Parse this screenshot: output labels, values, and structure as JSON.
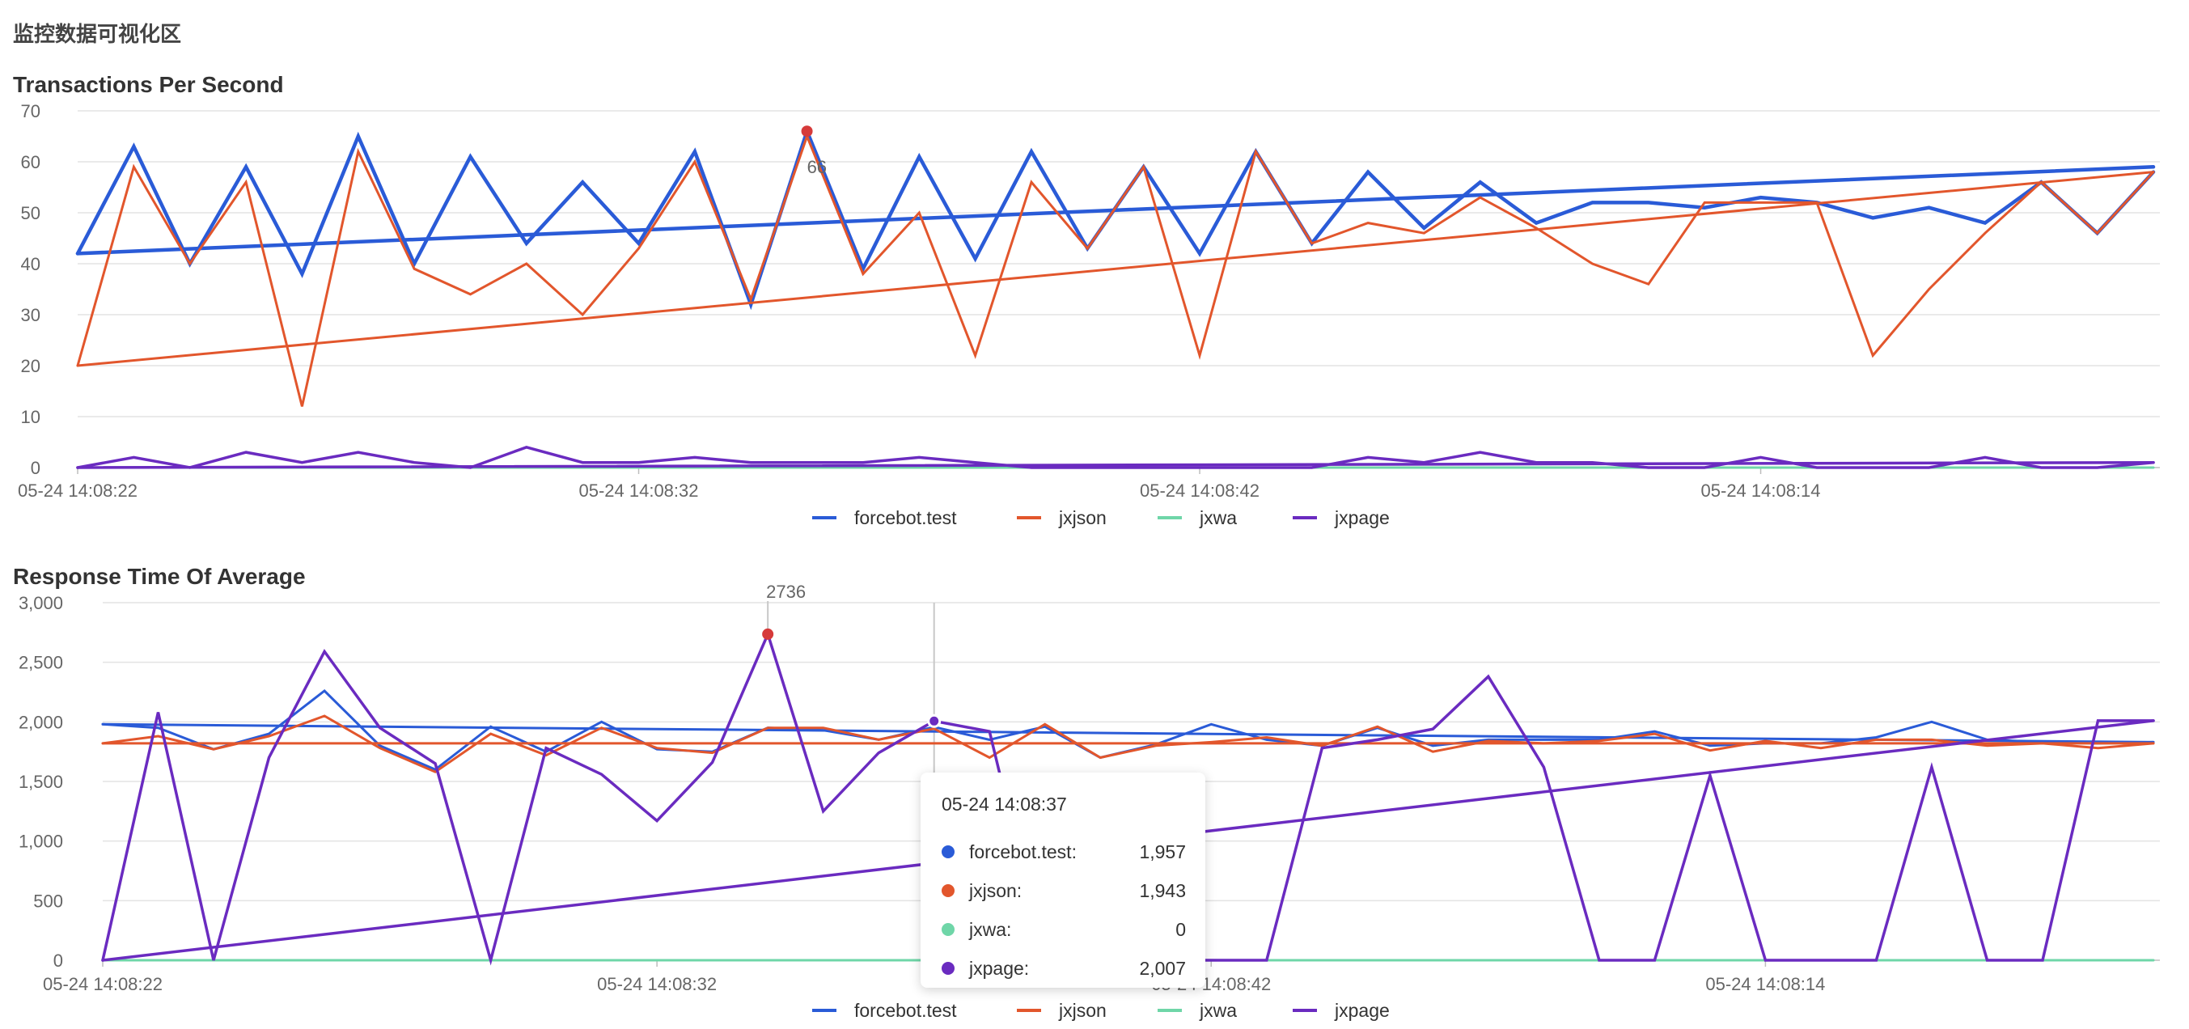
{
  "page": {
    "title": "监控数据可视化区"
  },
  "colors": {
    "forcebot_test": "#2a5bd7",
    "jxjson": "#e2562c",
    "jxwa": "#6fd6a8",
    "jxpage": "#6a2bc0",
    "highlight": "#d63a3a",
    "grid": "#e3e3e3"
  },
  "legend": [
    "forcebot.test",
    "jxjson",
    "jxwa",
    "jxpage"
  ],
  "tooltip": {
    "title": "05-24 14:08:37",
    "rows": [
      {
        "name": "forcebot.test:",
        "value": "1,957",
        "color": "#2a5bd7"
      },
      {
        "name": "jxjson:",
        "value": "1,943",
        "color": "#e2562c"
      },
      {
        "name": "jxwa:",
        "value": "0",
        "color": "#6fd6a8"
      },
      {
        "name": "jxpage:",
        "value": "2,007",
        "color": "#6a2bc0"
      }
    ]
  },
  "chart_data": [
    {
      "type": "line",
      "title": "Transactions Per Second",
      "xlabel": "",
      "ylabel": "",
      "ylim": [
        0,
        70
      ],
      "yticks": [
        "0",
        "10",
        "20",
        "30",
        "40",
        "50",
        "60",
        "70"
      ],
      "xtick_labels": [
        "05-24 14:08:22",
        "05-24 14:08:32",
        "05-24 14:08:42",
        "05-24 14:08:14"
      ],
      "xtick_indices": [
        0,
        10,
        20,
        30
      ],
      "n_points": 38,
      "grid": true,
      "legend_position": "bottom",
      "max_marker": {
        "series": "forcebot.test",
        "index": 13,
        "value": 66,
        "label": "66"
      },
      "series": [
        {
          "name": "forcebot.test",
          "color": "#2a5bd7",
          "width": 4.5,
          "values": [
            42,
            63,
            40,
            59,
            38,
            65,
            40,
            61,
            44,
            56,
            44,
            62,
            32,
            66,
            39,
            61,
            41,
            62,
            43,
            59,
            42,
            62,
            44,
            58,
            47,
            56,
            48,
            52,
            52,
            51,
            53,
            52,
            49,
            51,
            48,
            56,
            46,
            58
          ],
          "trend": [
            42,
            59
          ]
        },
        {
          "name": "jxjson",
          "color": "#e2562c",
          "width": 3,
          "values": [
            20,
            59,
            40,
            56,
            12,
            62,
            39,
            34,
            40,
            30,
            43,
            60,
            33,
            65,
            38,
            50,
            22,
            56,
            43,
            59,
            22,
            62,
            44,
            48,
            46,
            53,
            47,
            40,
            36,
            52,
            52,
            52,
            22,
            35,
            46,
            56,
            46,
            58
          ],
          "trend": [
            20,
            58
          ]
        },
        {
          "name": "jxwa",
          "color": "#6fd6a8",
          "width": 3,
          "values": [
            0,
            0,
            0,
            0,
            0,
            0,
            0,
            0,
            0,
            0,
            0,
            0,
            0,
            0,
            0,
            0,
            0,
            0,
            0,
            0,
            0,
            0,
            0,
            0,
            0,
            0,
            0,
            0,
            0,
            0,
            0,
            0,
            0,
            0,
            0,
            0,
            0,
            0
          ],
          "trend": null
        },
        {
          "name": "jxpage",
          "color": "#6a2bc0",
          "width": 3.5,
          "values": [
            0,
            2,
            0,
            3,
            1,
            3,
            1,
            0,
            4,
            1,
            1,
            2,
            1,
            1,
            1,
            2,
            1,
            0,
            0,
            0,
            0,
            0,
            0,
            2,
            1,
            3,
            1,
            1,
            0,
            0,
            2,
            0,
            0,
            0,
            2,
            0,
            0,
            1
          ],
          "trend": [
            0,
            1
          ]
        }
      ]
    },
    {
      "type": "line",
      "title": "Response Time Of Average",
      "xlabel": "",
      "ylabel": "",
      "ylim": [
        0,
        3000
      ],
      "yticks": [
        "0",
        "500",
        "1,000",
        "1,500",
        "2,000",
        "2,500",
        "3,000"
      ],
      "xtick_labels": [
        "05-24 14:08:22",
        "05-24 14:08:32",
        "05-24 14:08:42",
        "05-24 14:08:14"
      ],
      "xtick_indices": [
        0,
        10,
        20,
        30
      ],
      "n_points": 38,
      "grid": true,
      "legend_position": "bottom",
      "max_marker": {
        "series": "jxpage",
        "index": 12,
        "value": 2736,
        "label": "2736"
      },
      "crosshair_index": 15,
      "series": [
        {
          "name": "forcebot.test",
          "color": "#2a5bd7",
          "width": 3,
          "values": [
            1980,
            1950,
            1770,
            1900,
            2260,
            1800,
            1600,
            1960,
            1750,
            2000,
            1770,
            1750,
            1950,
            1930,
            1850,
            1957,
            1850,
            1960,
            1700,
            1810,
            1980,
            1850,
            1800,
            1950,
            1800,
            1850,
            1850,
            1850,
            1920,
            1800,
            1820,
            1820,
            1870,
            2000,
            1850,
            1830,
            1820,
            1830
          ],
          "trend": [
            1980,
            1830
          ]
        },
        {
          "name": "jxjson",
          "color": "#e2562c",
          "width": 3,
          "values": [
            1820,
            1880,
            1770,
            1880,
            2050,
            1780,
            1580,
            1900,
            1720,
            1950,
            1780,
            1740,
            1950,
            1950,
            1850,
            1943,
            1700,
            1980,
            1700,
            1800,
            1830,
            1870,
            1800,
            1960,
            1750,
            1840,
            1820,
            1840,
            1900,
            1760,
            1840,
            1780,
            1850,
            1850,
            1800,
            1820,
            1780,
            1820
          ],
          "trend": [
            1820,
            1820
          ]
        },
        {
          "name": "jxwa",
          "color": "#6fd6a8",
          "width": 3,
          "values": [
            0,
            0,
            0,
            0,
            0,
            0,
            0,
            0,
            0,
            0,
            0,
            0,
            0,
            0,
            0,
            0,
            0,
            0,
            0,
            0,
            0,
            0,
            0,
            0,
            0,
            0,
            0,
            0,
            0,
            0,
            0,
            0,
            0,
            0,
            0,
            0,
            0,
            0
          ],
          "trend": null
        },
        {
          "name": "jxpage",
          "color": "#6a2bc0",
          "width": 3.5,
          "values": [
            0,
            2080,
            0,
            1700,
            2590,
            1950,
            1650,
            0,
            1780,
            1560,
            1170,
            1660,
            2736,
            1250,
            1740,
            2007,
            1920,
            0,
            0,
            0,
            0,
            0,
            1780,
            1850,
            1940,
            2380,
            1620,
            0,
            0,
            1550,
            0,
            0,
            0,
            1620,
            0,
            0,
            2010,
            2010
          ],
          "trend": [
            0,
            2010
          ]
        }
      ]
    }
  ]
}
